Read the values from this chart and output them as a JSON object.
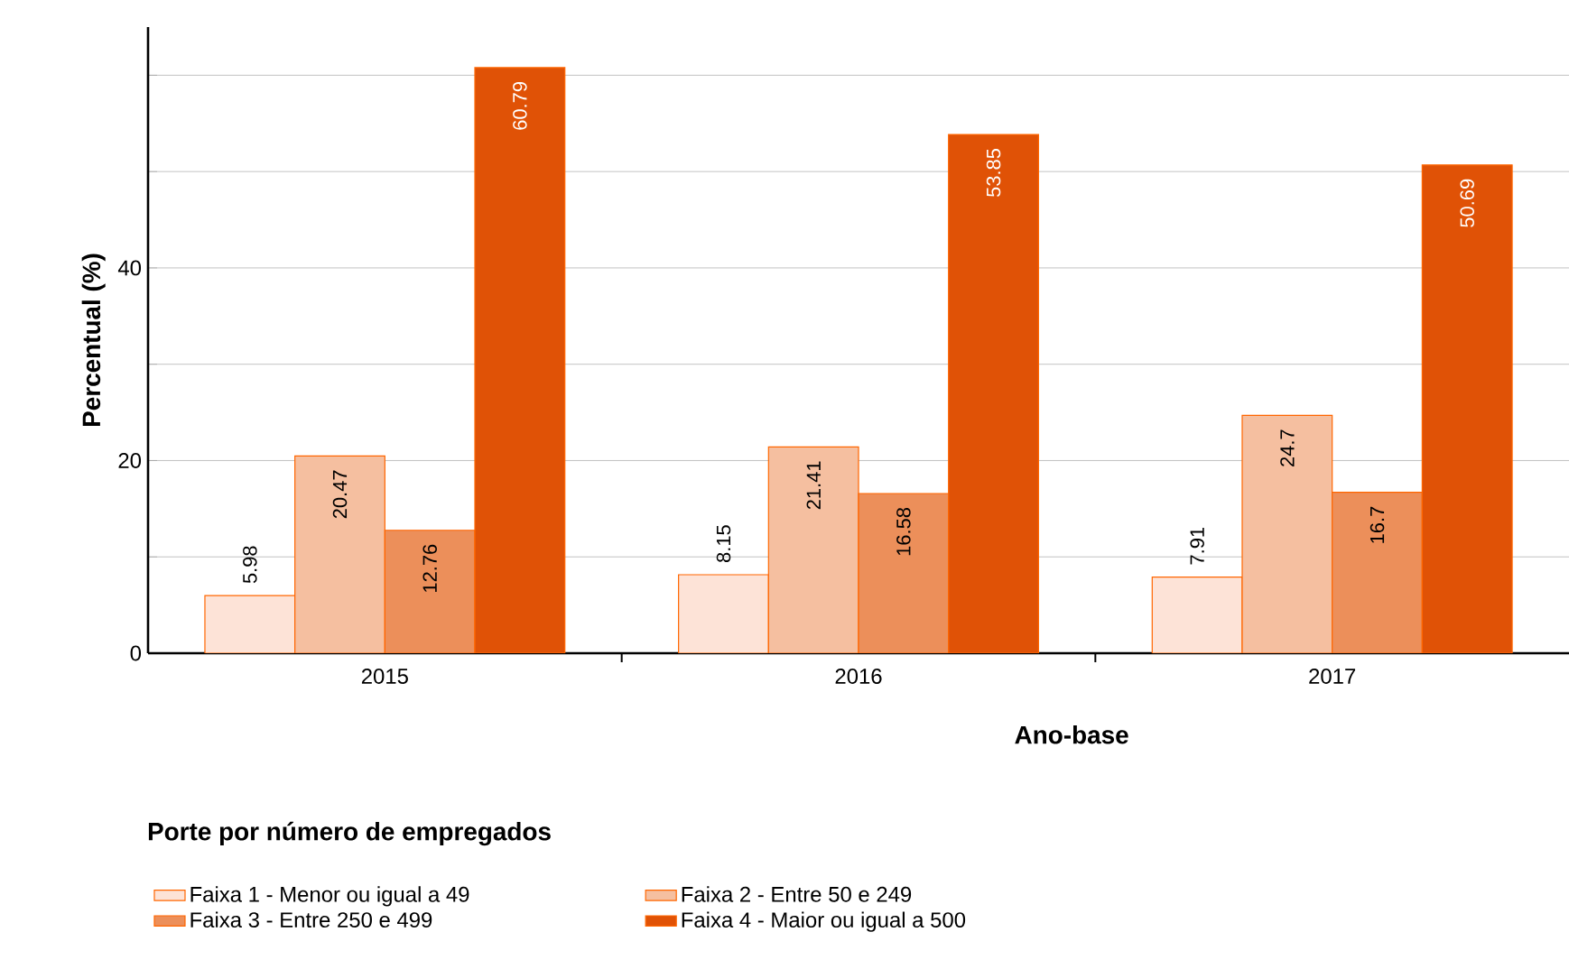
{
  "chart_data": {
    "type": "bar",
    "xlabel": "Ano-base",
    "ylabel": "Percentual (%)",
    "legend_title": "Porte por número de empregados",
    "categories": [
      "2015",
      "2016",
      "2017"
    ],
    "series": [
      {
        "name": "Faixa 1 - Menor ou igual a 49",
        "color": "#fde3d7",
        "values": [
          5.98,
          8.15,
          7.91
        ]
      },
      {
        "name": "Faixa 2 - Entre 50 e 249",
        "color": "#f5bfa0",
        "values": [
          20.47,
          21.41,
          24.7
        ]
      },
      {
        "name": "Faixa 3 - Entre 250 e 499",
        "color": "#ec8f5a",
        "values": [
          12.76,
          16.58,
          16.7
        ]
      },
      {
        "name": "Faixa 4 - Maior ou igual a 500",
        "color": "#e05206",
        "values": [
          60.79,
          53.85,
          50.69
        ]
      }
    ],
    "ylim": [
      0,
      65
    ],
    "yticks": [
      0,
      {
        "value": 10,
        "label": null
      },
      20,
      {
        "value": 30,
        "label": null
      },
      40,
      {
        "value": 50,
        "label": null
      },
      {
        "value": 60,
        "label": null
      }
    ],
    "grid": "y",
    "legend": "bottom",
    "data_labels": true
  }
}
